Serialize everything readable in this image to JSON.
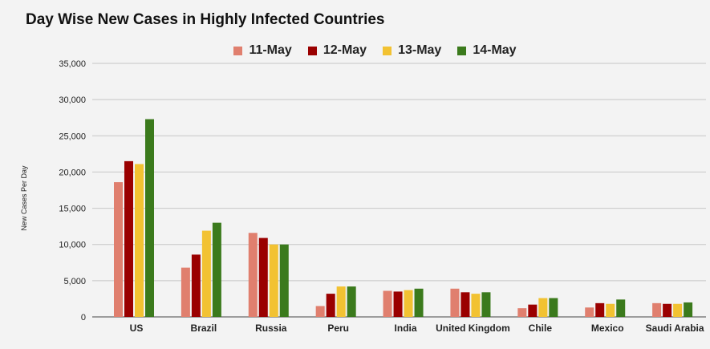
{
  "chart_data": {
    "type": "bar",
    "title": "Day Wise New Cases in Highly Infected Countries",
    "xlabel": "",
    "ylabel": "New Cases Per Day",
    "ylim": [
      0,
      35000
    ],
    "yticks": [
      "0",
      "5,000",
      "10,000",
      "15,000",
      "20,000",
      "25,000",
      "30,000",
      "35,000"
    ],
    "ytick_values": [
      0,
      5000,
      10000,
      15000,
      20000,
      25000,
      30000,
      35000
    ],
    "grid": true,
    "legend_position": "top",
    "categories": [
      "US",
      "Brazil",
      "Russia",
      "Peru",
      "India",
      "United Kingdom",
      "Chile",
      "Mexico",
      "Saudi Arabia"
    ],
    "series": [
      {
        "name": "11-May",
        "color": "#e07f6e",
        "values": [
          18600,
          6800,
          11600,
          1500,
          3600,
          3900,
          1200,
          1300,
          1900
        ]
      },
      {
        "name": "12-May",
        "color": "#9a0000",
        "values": [
          21500,
          8600,
          10900,
          3200,
          3500,
          3400,
          1700,
          1900,
          1800
        ]
      },
      {
        "name": "13-May",
        "color": "#f2c232",
        "values": [
          21100,
          11900,
          10000,
          4200,
          3700,
          3200,
          2600,
          1800,
          1800
        ]
      },
      {
        "name": "14-May",
        "color": "#3b7a1c",
        "values": [
          27300,
          13000,
          10000,
          4200,
          3900,
          3400,
          2600,
          2400,
          2000
        ]
      }
    ]
  }
}
